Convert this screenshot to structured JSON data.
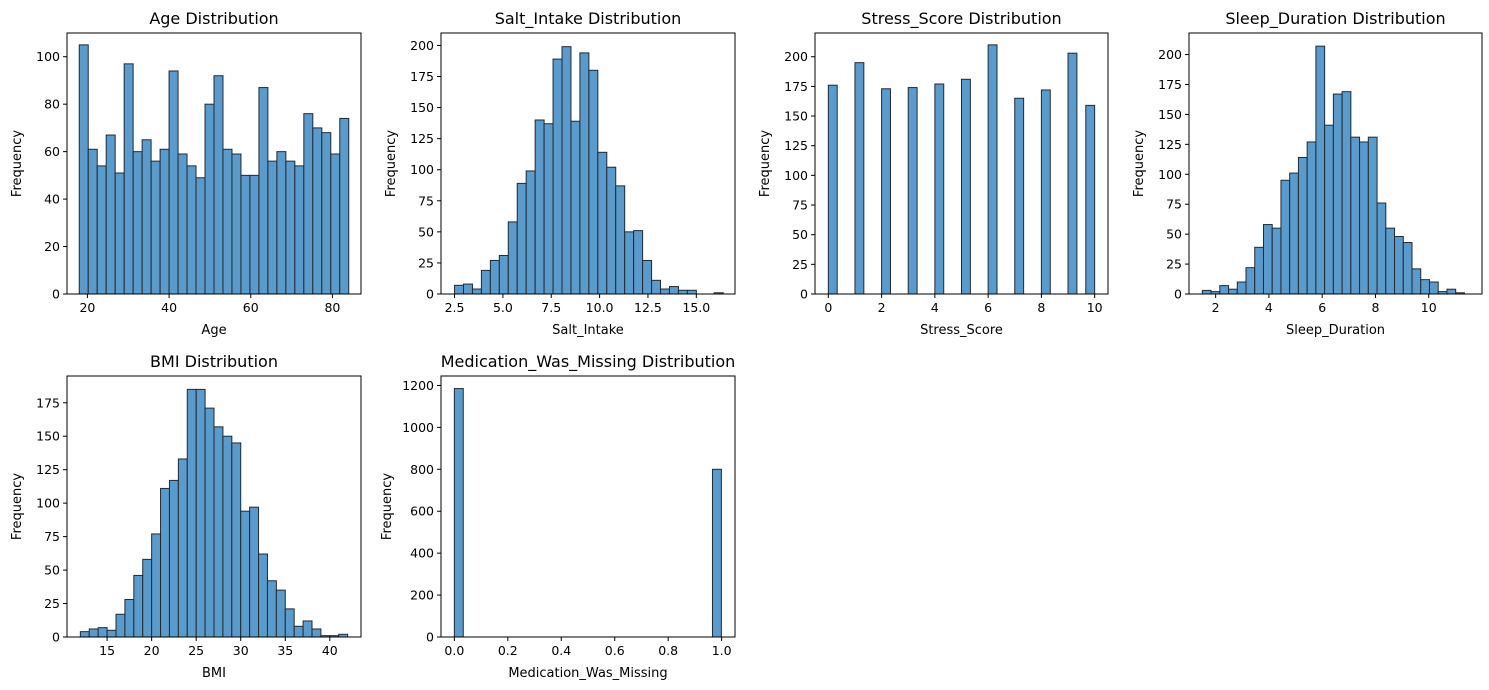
{
  "figure": {
    "background": "#ffffff",
    "bar_color": "#5b9bcc",
    "bar_edge_color": "#1f2a36"
  },
  "chart_data": [
    {
      "type": "bar",
      "title": "Age Distribution",
      "xlabel": "Age",
      "ylabel": "Frequency",
      "bin_start": 18,
      "bin_width": 2.2,
      "values": [
        105,
        61,
        54,
        67,
        51,
        97,
        60,
        65,
        56,
        61,
        94,
        59,
        54,
        49,
        80,
        92,
        61,
        59,
        50,
        50,
        87,
        56,
        60,
        56,
        54,
        76,
        70,
        68,
        59,
        74
      ],
      "xlim": [
        15,
        87
      ],
      "ylim": [
        0,
        110
      ],
      "xticks": [
        20,
        40,
        60,
        80
      ],
      "xtick_labels": [
        "20",
        "40",
        "60",
        "80"
      ],
      "yticks": [
        0,
        20,
        40,
        60,
        80,
        100
      ],
      "ytick_labels": [
        "0",
        "20",
        "40",
        "60",
        "80",
        "100"
      ],
      "grid": false
    },
    {
      "type": "bar",
      "title": "Salt_Intake Distribution",
      "xlabel": "Salt_Intake",
      "ylabel": "Frequency",
      "bin_start": 2.5,
      "bin_width": 0.463,
      "values": [
        7,
        8,
        4,
        19,
        27,
        31,
        58,
        89,
        99,
        140,
        137,
        189,
        199,
        139,
        194,
        180,
        114,
        102,
        87,
        50,
        51,
        27,
        11,
        4,
        6,
        3,
        3,
        0,
        0,
        1
      ],
      "xlim": [
        1.8,
        17.0
      ],
      "ylim": [
        0,
        210
      ],
      "xticks": [
        2.5,
        5.0,
        7.5,
        10.0,
        12.5,
        15.0
      ],
      "xtick_labels": [
        "2.5",
        "5.0",
        "7.5",
        "10.0",
        "12.5",
        "15.0"
      ],
      "yticks": [
        0,
        25,
        50,
        75,
        100,
        125,
        150,
        175,
        200
      ],
      "ytick_labels": [
        "0",
        "25",
        "50",
        "75",
        "100",
        "125",
        "150",
        "175",
        "200"
      ],
      "grid": false
    },
    {
      "type": "bar",
      "title": "Stress_Score Distribution",
      "xlabel": "Stress_Score",
      "ylabel": "Frequency",
      "bin_start": 0,
      "bin_width": 0.3333,
      "values": [
        176,
        0,
        0,
        195,
        0,
        0,
        173,
        0,
        0,
        174,
        0,
        0,
        177,
        0,
        0,
        181,
        0,
        0,
        210,
        0,
        0,
        165,
        0,
        0,
        172,
        0,
        0,
        203,
        0,
        159
      ],
      "xlim": [
        -0.5,
        10.5
      ],
      "ylim": [
        0,
        220
      ],
      "xticks": [
        0,
        2,
        4,
        6,
        8,
        10
      ],
      "xtick_labels": [
        "0",
        "2",
        "4",
        "6",
        "8",
        "10"
      ],
      "yticks": [
        0,
        25,
        50,
        75,
        100,
        125,
        150,
        175,
        200
      ],
      "ytick_labels": [
        "0",
        "25",
        "50",
        "75",
        "100",
        "125",
        "150",
        "175",
        "200"
      ],
      "grid": false
    },
    {
      "type": "bar",
      "title": "Sleep_Duration Distribution",
      "xlabel": "Sleep_Duration",
      "ylabel": "Frequency",
      "bin_start": 1.5,
      "bin_width": 0.328,
      "values": [
        3,
        2,
        7,
        4,
        10,
        22,
        39,
        58,
        55,
        95,
        101,
        114,
        127,
        207,
        141,
        167,
        169,
        131,
        127,
        131,
        76,
        55,
        48,
        43,
        21,
        12,
        10,
        2,
        4,
        1
      ],
      "xlim": [
        1.0,
        12.0
      ],
      "ylim": [
        0,
        218
      ],
      "xticks": [
        2,
        4,
        6,
        8,
        10
      ],
      "xtick_labels": [
        "2",
        "4",
        "6",
        "8",
        "10"
      ],
      "yticks": [
        0,
        25,
        50,
        75,
        100,
        125,
        150,
        175,
        200
      ],
      "ytick_labels": [
        "0",
        "25",
        "50",
        "75",
        "100",
        "125",
        "150",
        "175",
        "200"
      ],
      "grid": false
    },
    {
      "type": "bar",
      "title": "BMI Distribution",
      "xlabel": "BMI",
      "ylabel": "Frequency",
      "bin_start": 12,
      "bin_width": 1.0,
      "values": [
        4,
        6,
        7,
        5,
        17,
        28,
        46,
        58,
        77,
        111,
        117,
        133,
        185,
        185,
        171,
        157,
        150,
        145,
        94,
        97,
        62,
        42,
        35,
        21,
        8,
        12,
        6,
        1,
        1,
        2
      ],
      "xlim": [
        10.5,
        43.5
      ],
      "ylim": [
        0,
        195
      ],
      "xticks": [
        15,
        20,
        25,
        30,
        35,
        40
      ],
      "xtick_labels": [
        "15",
        "20",
        "25",
        "30",
        "35",
        "40"
      ],
      "yticks": [
        0,
        25,
        50,
        75,
        100,
        125,
        150,
        175
      ],
      "ytick_labels": [
        "0",
        "25",
        "50",
        "75",
        "100",
        "125",
        "150",
        "175"
      ],
      "grid": false
    },
    {
      "type": "bar",
      "title": "Medication_Was_Missing Distribution",
      "xlabel": "Medication_Was_Missing",
      "ylabel": "Frequency",
      "bin_start": 0,
      "bin_width": 0.0333,
      "values": [
        1185,
        0,
        0,
        0,
        0,
        0,
        0,
        0,
        0,
        0,
        0,
        0,
        0,
        0,
        0,
        0,
        0,
        0,
        0,
        0,
        0,
        0,
        0,
        0,
        0,
        0,
        0,
        0,
        0,
        800
      ],
      "xlim": [
        -0.05,
        1.05
      ],
      "ylim": [
        0,
        1245
      ],
      "xticks": [
        0.0,
        0.2,
        0.4,
        0.6,
        0.8,
        1.0
      ],
      "xtick_labels": [
        "0.0",
        "0.2",
        "0.4",
        "0.6",
        "0.8",
        "1.0"
      ],
      "yticks": [
        0,
        200,
        400,
        600,
        800,
        1000,
        1200
      ],
      "ytick_labels": [
        "0",
        "200",
        "400",
        "600",
        "800",
        "1000",
        "1200"
      ],
      "grid": false
    }
  ]
}
